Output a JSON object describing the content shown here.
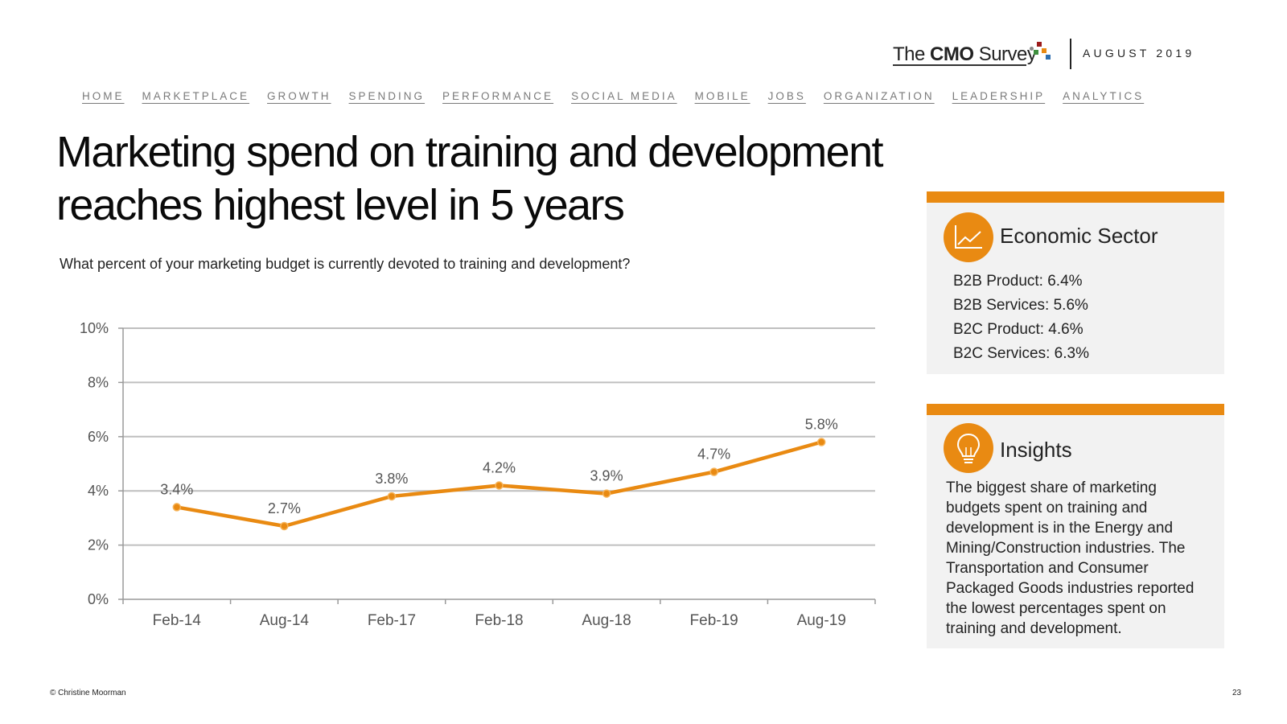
{
  "header": {
    "logo_prefix": "The ",
    "logo_bold": "CMO",
    "logo_suffix": " Survey",
    "date": "AUGUST 2019"
  },
  "nav": [
    "HOME",
    "MARKETPLACE",
    "GROWTH",
    "SPENDING",
    "PERFORMANCE",
    "SOCIAL MEDIA",
    "MOBILE",
    "JOBS",
    "ORGANIZATION",
    "LEADERSHIP",
    "ANALYTICS"
  ],
  "title_line1": "Marketing spend on training and development",
  "title_line2": "reaches highest level in 5 years",
  "subtitle": "What percent of your marketing budget is currently devoted to training and development?",
  "colors": {
    "accent": "#e98a12",
    "panel_bg": "#f2f2f2",
    "grid": "#bfbfbf"
  },
  "chart_data": {
    "type": "line",
    "categories": [
      "Feb-14",
      "Aug-14",
      "Feb-17",
      "Feb-18",
      "Aug-18",
      "Feb-19",
      "Aug-19"
    ],
    "values": [
      3.4,
      2.7,
      3.8,
      4.2,
      3.9,
      4.7,
      5.8
    ],
    "data_labels": [
      "3.4%",
      "2.7%",
      "3.8%",
      "4.2%",
      "3.9%",
      "4.7%",
      "5.8%"
    ],
    "y_ticks": [
      "0%",
      "2%",
      "4%",
      "6%",
      "8%",
      "10%"
    ],
    "ylim": [
      0,
      10
    ],
    "grid": true,
    "legend": false
  },
  "sector_panel": {
    "icon": "line-chart-icon",
    "heading": "Economic Sector",
    "items": [
      "B2B Product: 6.4%",
      "B2B Services: 5.6%",
      "B2C Product: 4.6%",
      "B2C Services: 6.3%"
    ]
  },
  "insights_panel": {
    "icon": "lightbulb-icon",
    "heading": "Insights",
    "text": "The biggest share of marketing budgets spent on training and development is in the Energy and Mining/Construction industries. The Transportation and Consumer Packaged Goods industries reported the lowest percentages spent on training and development."
  },
  "footer": {
    "copyright": "© Christine Moorman",
    "page_number": "23"
  }
}
